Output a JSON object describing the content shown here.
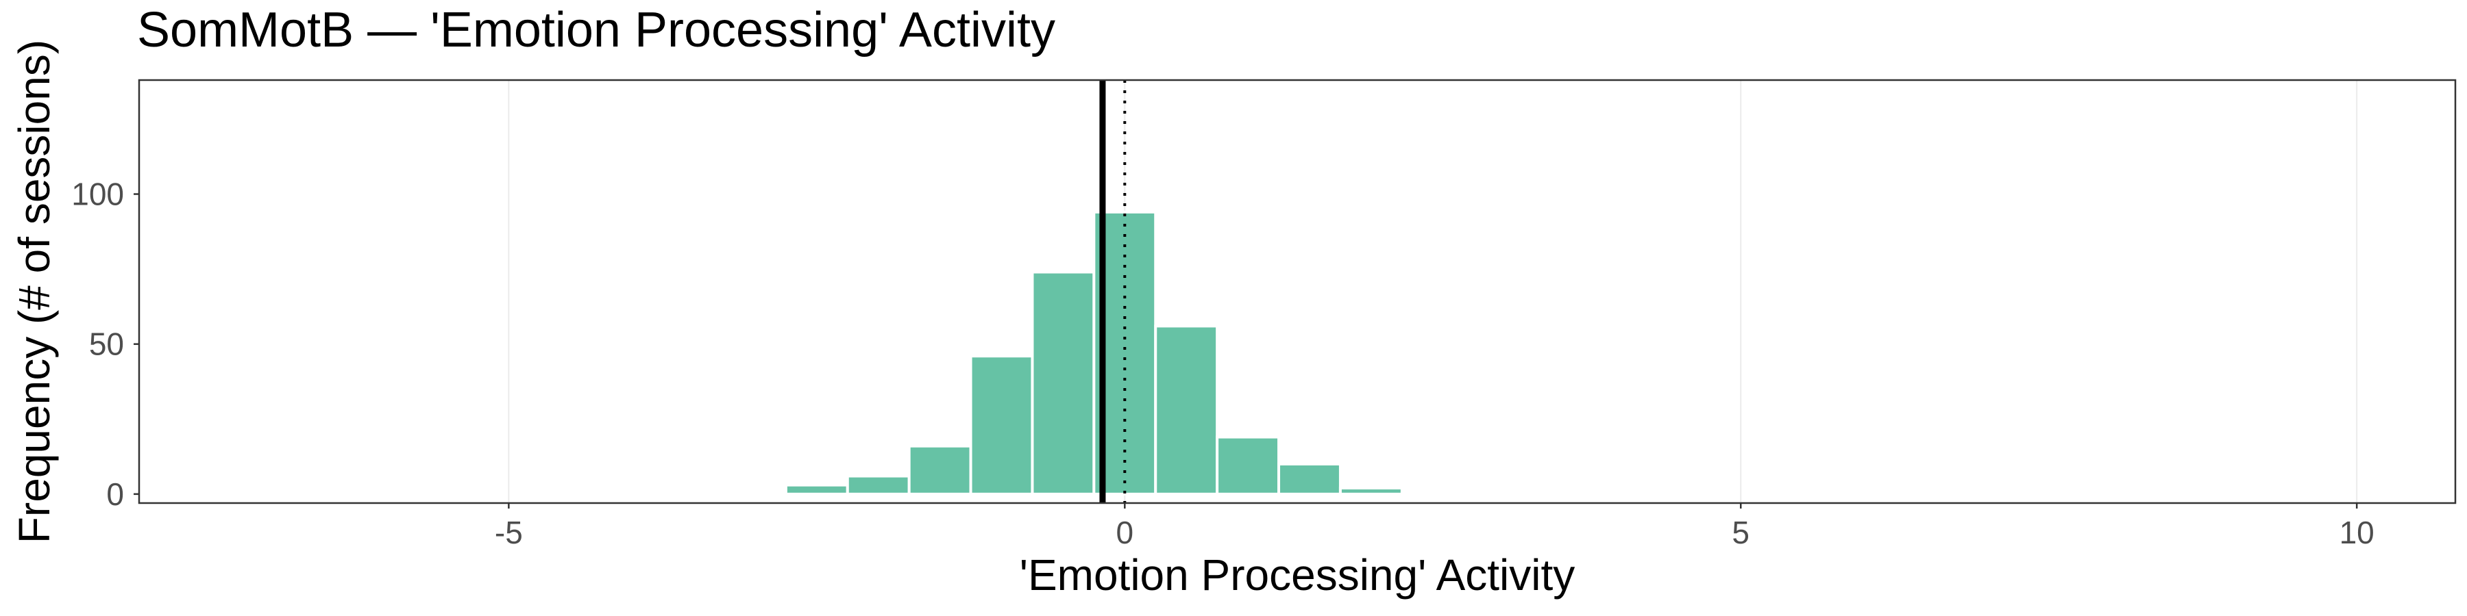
{
  "chart_data": {
    "type": "histogram",
    "title": "SomMotB — 'Emotion Processing' Activity",
    "xlabel": "'Emotion Processing' Activity",
    "ylabel": "Frequency (# of sessions)",
    "xlim": [
      -8,
      10.8
    ],
    "ylim": [
      -3,
      138
    ],
    "xticks": [
      -5,
      0,
      5,
      10
    ],
    "xtick_labels": [
      "-5",
      "0",
      "5",
      "10"
    ],
    "yticks": [
      0,
      50,
      100
    ],
    "ytick_labels": [
      "0",
      "50",
      "100"
    ],
    "bar_color": "#66c2a5",
    "bins": [
      {
        "x0": -2.75,
        "x1": -2.25,
        "count": 3
      },
      {
        "x0": -2.25,
        "x1": -1.75,
        "count": 6
      },
      {
        "x0": -1.75,
        "x1": -1.25,
        "count": 16
      },
      {
        "x0": -1.25,
        "x1": -0.75,
        "count": 46
      },
      {
        "x0": -0.75,
        "x1": -0.25,
        "count": 74
      },
      {
        "x0": -0.25,
        "x1": 0.25,
        "count": 94
      },
      {
        "x0": 0.25,
        "x1": 0.75,
        "count": 56
      },
      {
        "x0": 0.75,
        "x1": 1.25,
        "count": 19
      },
      {
        "x0": 1.25,
        "x1": 1.75,
        "count": 10
      },
      {
        "x0": 1.75,
        "x1": 2.25,
        "count": 2
      }
    ],
    "reference_lines": [
      {
        "name": "mean",
        "x": -0.18,
        "style": "solid"
      },
      {
        "name": "zero",
        "x": 0,
        "style": "dotted"
      }
    ],
    "grid": true,
    "legend": "none"
  }
}
